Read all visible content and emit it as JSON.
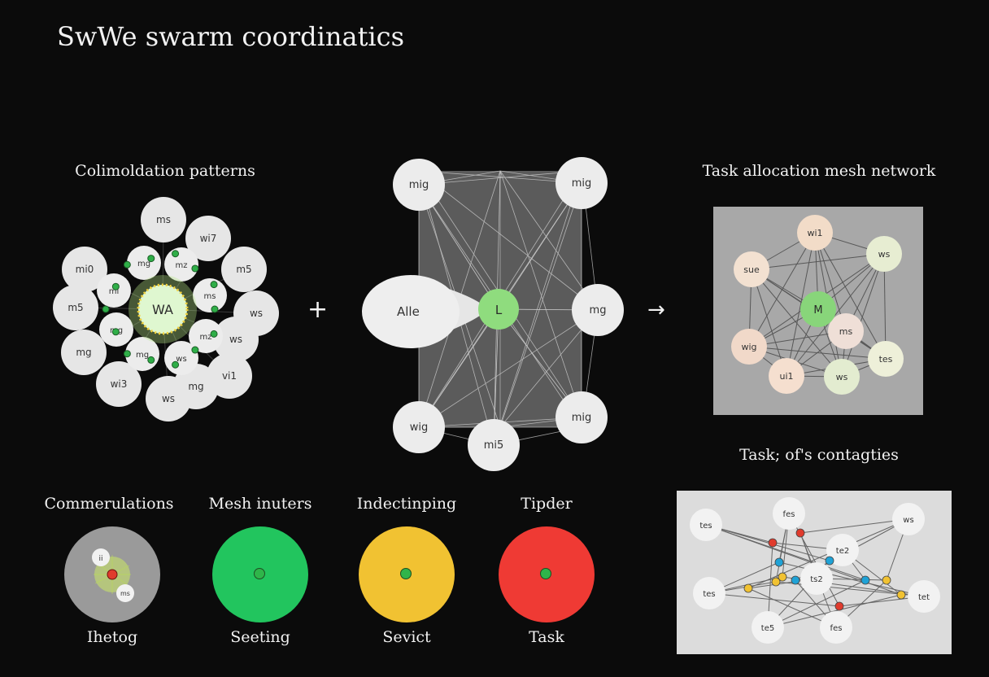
{
  "title": "SwWe swarm coordinatics",
  "sections": {
    "left": "Colimoldation patterns",
    "right_top": "Task allocation mesh network",
    "right_bottom": "Task; of's contagties"
  },
  "operators": {
    "plus": "+",
    "arrow": "→"
  },
  "swarm": {
    "center": "WA",
    "outer": [
      "ms",
      "wi7",
      "m5",
      "ws",
      "ws",
      "vi1",
      "mg",
      "ws",
      "wi3",
      "mg",
      "m5",
      "mi0"
    ],
    "inner": [
      "mg",
      "mz",
      "ms",
      "mz",
      "ws",
      "mg",
      "mg",
      "mi"
    ]
  },
  "mesh": {
    "center": "L",
    "left": "Alle",
    "nodes": [
      "mig",
      "mig",
      "mg",
      "mig",
      "mi5",
      "wig"
    ]
  },
  "task_allocation": {
    "center": "M",
    "nodes": [
      "wi1",
      "ws",
      "tes",
      "ws",
      "ui1",
      "wig",
      "sue",
      "ms"
    ]
  },
  "contagion": {
    "nodes": [
      "tes",
      "fes",
      "ws",
      "te2",
      "tet",
      "fes",
      "te5",
      "tes",
      "ts2"
    ]
  },
  "legend": [
    {
      "label_top": "Commerulations",
      "label_bottom": "Ihetog",
      "color": "#9a9a9a",
      "mini": [
        "ii",
        "ms"
      ]
    },
    {
      "label_top": "Mesh inuters",
      "label_bottom": "Seeting",
      "color": "#22c55e"
    },
    {
      "label_top": "Indectinping",
      "label_bottom": "Sevict",
      "color": "#f1c232"
    },
    {
      "label_top": "Tipder",
      "label_bottom": "Task",
      "color": "#ef3a34"
    }
  ]
}
